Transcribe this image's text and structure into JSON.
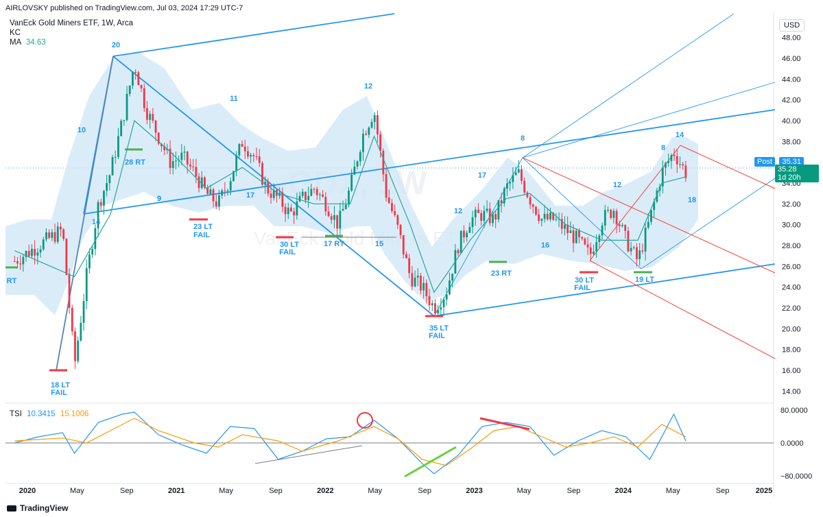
{
  "header": {
    "publisher": "AIRLOVSKY published on TradingView.com, Jul 03, 2024 17:29 UTC-7",
    "symbol": "VanEck Gold Miners ETF, 1W, Arca",
    "indicator_kc": "KC",
    "ma_label": "MA",
    "ma_value": "34.63",
    "tsi_label": "TSI",
    "tsi_value_1": "10.3415",
    "tsi_value_2": "15.1006"
  },
  "currency": "USD",
  "watermark": {
    "ticker": "GDX, 1W",
    "name": "VanEck Gold Miners ETF"
  },
  "price_tags": {
    "post_label": "Post",
    "post_value": "35.31",
    "last_value": "35.28",
    "countdown": "1d 20h"
  },
  "footer": {
    "logo": "TradingView"
  },
  "colors": {
    "up": "#089981",
    "down": "#f23645",
    "blue_line": "#2196f3",
    "red_line": "#f44336",
    "ma": "#26a69a",
    "channel_fill": "#cfe6f7",
    "tsi_a": "#2196f3",
    "tsi_b": "#ff9800"
  },
  "chart_data": {
    "type": "line",
    "title": "VanEck Gold Miners ETF, 1W, Arca",
    "x_ticks": [
      "2020",
      "May",
      "Sep",
      "2021",
      "May",
      "Sep",
      "2022",
      "May",
      "Sep",
      "2023",
      "May",
      "Sep",
      "2024",
      "May",
      "Sep",
      "2025"
    ],
    "y_ticks": [
      "48.00",
      "46.00",
      "44.00",
      "42.00",
      "40.00",
      "38.00",
      "36.00",
      "34.00",
      "32.00",
      "30.00",
      "28.00",
      "26.00",
      "24.00",
      "22.00",
      "20.00",
      "18.00",
      "16.00",
      "14.00"
    ],
    "ylim": [
      13.5,
      48.5
    ],
    "series": [
      {
        "name": "",
        "x": [
          "2019-10",
          "2019-12",
          "2020-02",
          "2020-03",
          "2020-04",
          "2020-05",
          "2020-06",
          "2020-07",
          "2020-08",
          "2020-09",
          "2020-10",
          "2020-11",
          "2020-12",
          "2021-01",
          "2021-02",
          "2021-03",
          "2021-04",
          "2021-05",
          "2021-06",
          "2021-07",
          "2021-08",
          "2021-09",
          "2021-10",
          "2021-11",
          "2021-12",
          "2022-01",
          "2022-02",
          "2022-03",
          "2022-04",
          "2022-05",
          "2022-06",
          "2022-07",
          "2022-08",
          "2022-09",
          "2022-10",
          "2022-11",
          "2022-12",
          "2023-01",
          "2023-02",
          "2023-03",
          "2023-04",
          "2023-05",
          "2023-06",
          "2023-07",
          "2023-08",
          "2023-09",
          "2023-10",
          "2023-11",
          "2023-12",
          "2024-01",
          "2024-02",
          "2024-03",
          "2024-04",
          "2024-05",
          "2024-06"
        ],
        "values": [
          26.5,
          28.0,
          29.5,
          16.5,
          25.0,
          32.0,
          35.0,
          40.0,
          45.5,
          41.0,
          38.5,
          36.0,
          36.5,
          35.0,
          33.0,
          32.0,
          34.5,
          38.0,
          36.5,
          33.5,
          32.5,
          31.0,
          32.5,
          33.5,
          32.0,
          30.0,
          33.5,
          38.5,
          41.0,
          33.0,
          29.5,
          25.0,
          24.0,
          22.0,
          23.5,
          28.0,
          30.5,
          31.0,
          30.5,
          33.5,
          35.0,
          32.5,
          30.5,
          30.5,
          29.5,
          28.5,
          27.0,
          30.5,
          31.5,
          28.5,
          26.5,
          30.5,
          35.0,
          37.0,
          35.0
        ]
      },
      {
        "name": "",
        "x": [
          "2019-10",
          "2020-03",
          "2020-06",
          "2020-08",
          "2020-11",
          "2021-02",
          "2021-05",
          "2021-08",
          "2021-11",
          "2022-02",
          "2022-04",
          "2022-07",
          "2022-09",
          "2022-12",
          "2023-03",
          "2023-05",
          "2023-08",
          "2023-11",
          "2024-02",
          "2024-04",
          "2024-06"
        ],
        "values": [
          27.5,
          25.0,
          31.0,
          40.0,
          37.0,
          33.5,
          35.5,
          33.0,
          32.0,
          32.0,
          38.5,
          30.0,
          23.5,
          28.5,
          32.5,
          33.0,
          30.0,
          28.5,
          28.5,
          34.0,
          34.6
        ]
      }
    ],
    "annotations": [
      "20",
      "10",
      "11",
      "12",
      "8",
      "17",
      "9",
      "12",
      "16",
      "12",
      "8",
      "14",
      "18",
      "28 RT",
      "9",
      "14",
      "17",
      "15",
      "23 LT",
      "FAIL",
      "30 LT",
      "FAIL",
      "17 RT",
      "23 RT",
      "30 LT",
      "FAIL",
      "19 LT",
      "35  LT",
      "FAIL",
      "18 LT",
      "FAIL",
      "RT"
    ],
    "tsi": {
      "ylim": [
        -100,
        100
      ],
      "y_ticks": [
        "80.0000",
        "0.0000",
        "−80.0000"
      ],
      "series": [
        {
          "name": "",
          "x": [
            "2019-10",
            "2019-12",
            "2020-02",
            "2020-03",
            "2020-05",
            "2020-07",
            "2020-08",
            "2020-10",
            "2020-12",
            "2021-02",
            "2021-04",
            "2021-06",
            "2021-08",
            "2021-10",
            "2021-12",
            "2022-02",
            "2022-04",
            "2022-06",
            "2022-08",
            "2022-09",
            "2022-11",
            "2023-01",
            "2023-03",
            "2023-05",
            "2023-07",
            "2023-09",
            "2023-11",
            "2024-01",
            "2024-03",
            "2024-05",
            "2024-06"
          ],
          "values": [
            0,
            15,
            25,
            -25,
            50,
            70,
            75,
            20,
            -5,
            -25,
            40,
            35,
            -40,
            -20,
            10,
            15,
            55,
            10,
            -50,
            -75,
            -30,
            40,
            50,
            40,
            -30,
            5,
            30,
            15,
            -40,
            70,
            5
          ]
        },
        {
          "name": "",
          "x": [
            "2019-10",
            "2020-02",
            "2020-04",
            "2020-06",
            "2020-08",
            "2020-10",
            "2021-01",
            "2021-03",
            "2021-05",
            "2021-08",
            "2021-10",
            "2022-01",
            "2022-04",
            "2022-06",
            "2022-08",
            "2022-10",
            "2022-12",
            "2023-02",
            "2023-04",
            "2023-06",
            "2023-08",
            "2023-10",
            "2023-12",
            "2024-02",
            "2024-04",
            "2024-06"
          ],
          "values": [
            5,
            12,
            0,
            30,
            60,
            30,
            0,
            -10,
            20,
            5,
            -20,
            5,
            40,
            10,
            -40,
            -55,
            -15,
            30,
            40,
            15,
            -10,
            0,
            15,
            -10,
            45,
            15
          ]
        }
      ]
    }
  }
}
